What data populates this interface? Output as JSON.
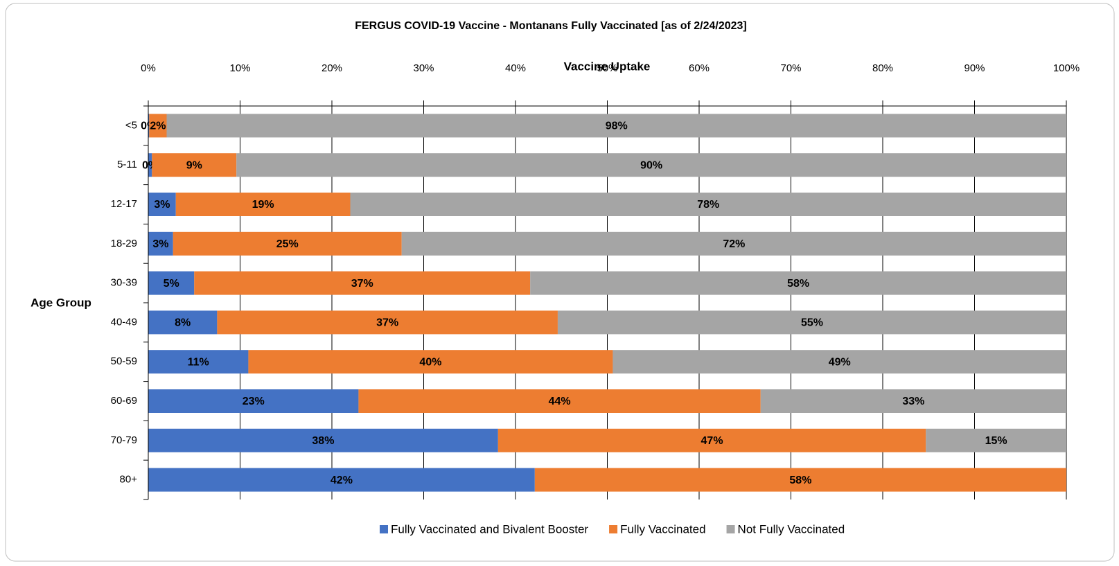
{
  "chart_data": {
    "type": "stacked-bar-horizontal",
    "title": "FERGUS COVID-19 Vaccine - Montanans Fully Vaccinated [as of 2/24/2023]",
    "x_label": "Vaccine Uptake",
    "y_label": "Age Group",
    "categories": [
      "<5",
      "5-11",
      "12-17",
      "18-29",
      "30-39",
      "40-49",
      "50-59",
      "60-69",
      "70-79",
      "80+"
    ],
    "series": [
      {
        "name": "Fully Vaccinated and Bivalent Booster",
        "color": "#4472c4",
        "values": [
          0.1,
          0.4,
          3.0,
          2.7,
          5.0,
          7.5,
          10.9,
          22.9,
          38.1,
          42.1
        ],
        "value_labels": [
          "0%",
          "0%",
          "3%",
          "3%",
          "5%",
          "8%",
          "11%",
          "23%",
          "38%",
          "42%"
        ]
      },
      {
        "name": "Fully Vaccinated",
        "color": "#ed7d31",
        "values": [
          1.9,
          9.2,
          19.0,
          24.9,
          36.6,
          37.1,
          39.7,
          43.8,
          46.6,
          57.9
        ],
        "value_labels": [
          "2%",
          "9%",
          "19%",
          "25%",
          "37%",
          "37%",
          "40%",
          "44%",
          "47%",
          "58%"
        ]
      },
      {
        "name": "Not Fully Vaccinated",
        "color": "#a5a5a5",
        "values": [
          98.0,
          90.4,
          78.0,
          72.4,
          58.4,
          55.4,
          49.4,
          33.3,
          15.3,
          null
        ],
        "value_labels": [
          "98%",
          "90%",
          "78%",
          "72%",
          "58%",
          "55%",
          "49%",
          "33%",
          "15%",
          null
        ]
      }
    ],
    "xlim": [
      0,
      100
    ],
    "xticks": [
      {
        "value": 0,
        "label": "0%"
      },
      {
        "value": 10,
        "label": "10%"
      },
      {
        "value": 20,
        "label": "20%"
      },
      {
        "value": 30,
        "label": "30%"
      },
      {
        "value": 40,
        "label": "40%"
      },
      {
        "value": 50,
        "label": "50%"
      },
      {
        "value": 60,
        "label": "60%"
      },
      {
        "value": 70,
        "label": "70%"
      },
      {
        "value": 80,
        "label": "80%"
      },
      {
        "value": 90,
        "label": "90%"
      },
      {
        "value": 100,
        "label": "100%"
      }
    ],
    "grid": true,
    "legend": "bottom"
  }
}
